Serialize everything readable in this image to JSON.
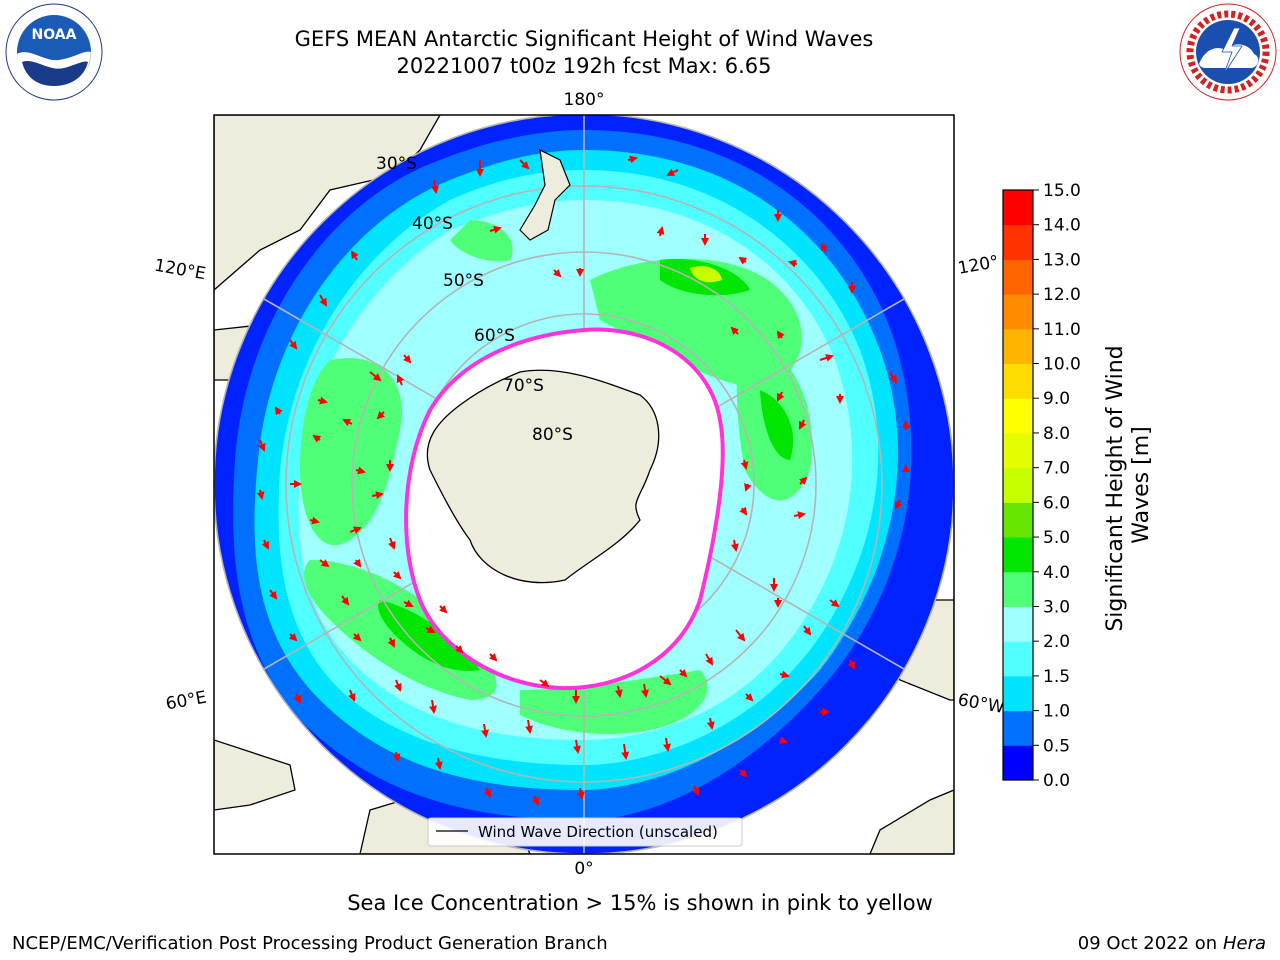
{
  "header": {
    "title_line1": "GEFS MEAN Antarctic Significant Height of Wind Waves",
    "title_line2": "20221007 t00z 192h fcst   Max: 6.65"
  },
  "logos": {
    "left": {
      "name": "noaa-logo",
      "text": "NOAA",
      "ring_text": "NATIONAL OCEANIC AND ATMOSPHERIC ADMINISTRATION · U.S. DEPARTMENT OF COMMERCE"
    },
    "right": {
      "name": "nws-logo",
      "ring_text": "NATIONAL WEATHER SERVICE"
    }
  },
  "map": {
    "projection": "south polar stereographic",
    "longitude_labels": {
      "top": "180°",
      "bottom": "0°",
      "upper_left": "120°E",
      "lower_left": "60°E",
      "upper_right": "120°",
      "lower_right": "60°W"
    },
    "latitude_labels": [
      "30°S",
      "40°S",
      "50°S",
      "60°S",
      "70°S",
      "80°S"
    ],
    "legend_label": "Wind Wave Direction (unscaled)",
    "colors": {
      "land": "#eeecdc",
      "ice_free_center": "#ffffff",
      "sea_ice_edge": "#ff33dd",
      "arrow": "#ff0000",
      "grid": "#b4b4b4"
    }
  },
  "colorbar": {
    "label": "Significant Height of Wind Waves [m]",
    "label_line1": "Significant Height of Wind",
    "label_line2": "Waves [m]",
    "ticks": [
      "0.0",
      "0.5",
      "1.0",
      "1.5",
      "2.0",
      "3.0",
      "4.0",
      "5.0",
      "6.0",
      "7.0",
      "8.0",
      "9.0",
      "10.0",
      "11.0",
      "12.0",
      "13.0",
      "14.0",
      "15.0"
    ],
    "colors": [
      "#0000ff",
      "#0070ff",
      "#00e4ff",
      "#50ffff",
      "#a0ffff",
      "#50ff78",
      "#00e600",
      "#64e600",
      "#c8ff00",
      "#e6ff00",
      "#ffff00",
      "#ffdc00",
      "#ffb400",
      "#ff8c00",
      "#ff6400",
      "#ff3200",
      "#ff0000"
    ]
  },
  "footer": {
    "sea_ice_note": "Sea Ice Concentration > 15% is shown in pink to yellow",
    "credit": "NCEP/EMC/Verification Post Processing Product Generation Branch",
    "date": "09 Oct 2022 on",
    "machine": "Hera"
  }
}
